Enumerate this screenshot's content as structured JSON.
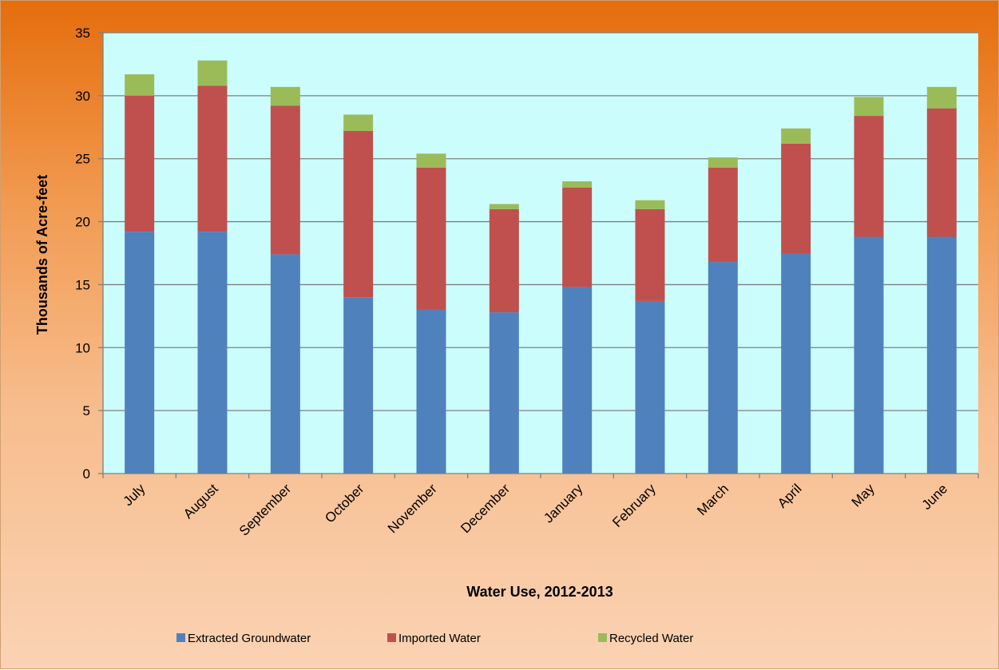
{
  "chart_data": {
    "type": "bar",
    "stacked": true,
    "title": "",
    "xlabel": "Water Use, 2012-2013",
    "ylabel": "Thousands of Acre-feet",
    "ylim": [
      0,
      35
    ],
    "yticks": [
      0,
      5,
      10,
      15,
      20,
      25,
      30,
      35
    ],
    "grid": true,
    "legend_position": "bottom",
    "categories": [
      "July",
      "August",
      "September",
      "October",
      "November",
      "December",
      "January",
      "February",
      "March",
      "April",
      "May",
      "June"
    ],
    "series": [
      {
        "name": "Extracted Groundwater",
        "color": "#4f81bd",
        "values": [
          19.2,
          19.2,
          17.4,
          14.0,
          13.0,
          12.8,
          14.8,
          13.7,
          16.8,
          17.5,
          18.8,
          18.8
        ]
      },
      {
        "name": "Imported Water",
        "color": "#c0504d",
        "values": [
          10.8,
          11.6,
          11.8,
          13.2,
          11.3,
          8.2,
          7.9,
          7.3,
          7.5,
          8.7,
          9.6,
          10.2
        ]
      },
      {
        "name": "Recycled Water",
        "color": "#9bbb59",
        "values": [
          1.7,
          2.0,
          1.5,
          1.3,
          1.1,
          0.4,
          0.5,
          0.7,
          0.8,
          1.2,
          1.5,
          1.7
        ]
      }
    ],
    "plot_background": "#ccfdfd"
  }
}
